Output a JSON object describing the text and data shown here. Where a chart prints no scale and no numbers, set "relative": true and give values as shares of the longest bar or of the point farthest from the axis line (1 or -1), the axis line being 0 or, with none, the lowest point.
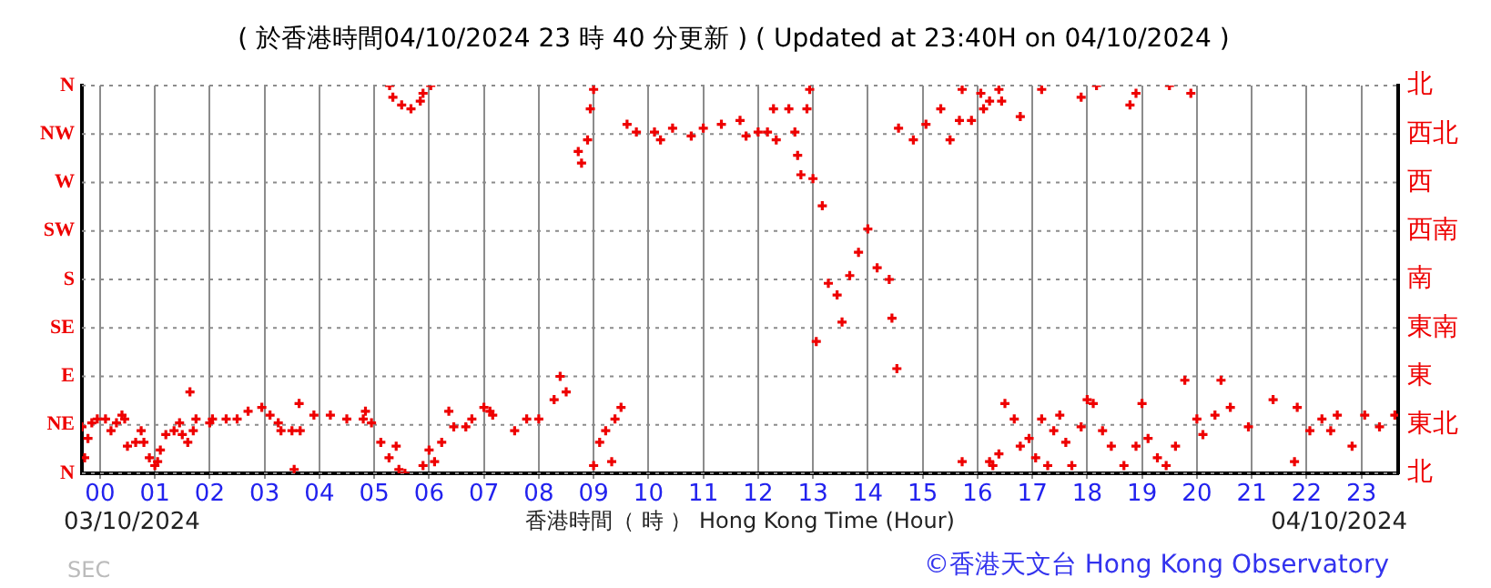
{
  "chart_data": {
    "type": "scatter",
    "title": "( 於香港時間04/10/2024 23 時 40 分更新 ) ( Updated at 23:40H on 04/10/2024 )",
    "xlabel": "香港時間（ 時 ） Hong Kong Time (Hour)",
    "annotations": [
      "03/10/2024",
      "04/10/2024",
      "©香港天文台 Hong Kong Observatory",
      "SEC",
      "N",
      "NE",
      "E",
      "SE",
      "S",
      "SW",
      "W",
      "NW",
      "N",
      "北",
      "東北",
      "東",
      "東南",
      "南",
      "西南",
      "西",
      "西北",
      "北"
    ],
    "color": "#ee0000",
    "marker": "cross",
    "grid": true,
    "relative": true,
    "x": [
      -0.33,
      -0.28,
      -0.22,
      -0.15,
      -0.05,
      0.1,
      0.2,
      0.3,
      0.4,
      0.45,
      0.5,
      0.65,
      0.75,
      0.8,
      0.9,
      1.0,
      1.05,
      1.1,
      1.2,
      1.35,
      1.45,
      1.5,
      1.6,
      1.64,
      1.7,
      1.75,
      2.0,
      2.05,
      2.3,
      2.5,
      2.7,
      2.95,
      3.1,
      3.25,
      3.3,
      3.5,
      3.54,
      3.63,
      3.65,
      3.9,
      4.2,
      4.5,
      4.8,
      4.84,
      4.95,
      5.12,
      5.27,
      5.28,
      5.34,
      5.4,
      5.45,
      5.5,
      5.56,
      5.67,
      5.84,
      5.89,
      5.89,
      6.0,
      6.03,
      6.1,
      6.23,
      6.36,
      6.45,
      6.67,
      6.78,
      7.0,
      7.11,
      7.16,
      7.56,
      7.78,
      8.0,
      8.28,
      8.39,
      8.5,
      8.72,
      8.78,
      8.89,
      8.94,
      9.0,
      9.0,
      9.11,
      9.22,
      9.33,
      9.39,
      9.5,
      9.61,
      9.78,
      10.11,
      10.22,
      10.44,
      10.78,
      11.0,
      11.33,
      11.67,
      11.78,
      12.0,
      12.17,
      12.28,
      12.33,
      12.56,
      12.67,
      12.72,
      12.78,
      12.89,
      12.94,
      13.0,
      13.06,
      13.17,
      13.28,
      13.44,
      13.53,
      13.67,
      13.83,
      14.0,
      14.17,
      14.39,
      14.44,
      14.53,
      14.56,
      14.83,
      15.06,
      15.33,
      15.5,
      15.67,
      15.72,
      15.72,
      15.89,
      16.06,
      16.11,
      16.22,
      16.22,
      16.28,
      16.39,
      16.39,
      16.44,
      16.5,
      16.67,
      16.78,
      16.78,
      16.94,
      17.06,
      17.17,
      17.17,
      17.28,
      17.39,
      17.5,
      17.61,
      17.72,
      17.89,
      17.89,
      18.0,
      18.11,
      18.17,
      18.28,
      18.44,
      18.67,
      18.78,
      18.89,
      18.89,
      19.0,
      19.11,
      19.28,
      19.44,
      19.5,
      19.61,
      19.78,
      19.89,
      20.0,
      20.11,
      20.33,
      20.44,
      20.61,
      20.94,
      21.39,
      21.78,
      21.83,
      22.06,
      22.28,
      22.44,
      22.56,
      22.83,
      23.06,
      23.33,
      23.61
    ],
    "values": [
      0.12,
      0.04,
      0.09,
      0.13,
      0.14,
      0.14,
      0.11,
      0.13,
      0.15,
      0.14,
      0.07,
      0.08,
      0.11,
      0.08,
      0.04,
      0.02,
      0.03,
      0.06,
      0.1,
      0.11,
      0.13,
      0.1,
      0.08,
      0.21,
      0.11,
      0.14,
      0.13,
      0.14,
      0.14,
      0.14,
      0.16,
      0.17,
      0.15,
      0.13,
      0.11,
      0.11,
      0.01,
      0.18,
      0.11,
      0.15,
      0.15,
      0.14,
      0.14,
      0.16,
      0.13,
      0.08,
      0.04,
      1,
      0.97,
      0.07,
      0.01,
      0.95,
      0,
      0.94,
      0.96,
      0.98,
      0.02,
      0.06,
      1,
      0.03,
      0.08,
      0.16,
      0.12,
      0.12,
      0.14,
      0.17,
      0.16,
      0.15,
      0.11,
      0.14,
      0.14,
      0.19,
      0.25,
      0.21,
      0.83,
      0.8,
      0.86,
      0.94,
      0.99,
      0.02,
      0.08,
      0.11,
      0.03,
      0.14,
      0.17,
      0.9,
      0.88,
      0.88,
      0.86,
      0.89,
      0.87,
      0.89,
      0.9,
      0.91,
      0.87,
      0.88,
      0.88,
      0.94,
      0.86,
      0.94,
      0.88,
      0.82,
      0.77,
      0.94,
      0.99,
      0.76,
      0.34,
      0.69,
      0.49,
      0.46,
      0.39,
      0.51,
      0.57,
      0.63,
      0.53,
      0.5,
      0.4,
      0.27,
      0.89,
      0.86,
      0.9,
      0.94,
      0.86,
      0.91,
      0.99,
      0.03,
      0.91,
      0.98,
      0.94,
      0.96,
      0.03,
      0.02,
      0.99,
      0.05,
      0.96,
      0.18,
      0.14,
      0.92,
      0.07,
      0.09,
      0.04,
      0.99,
      0.14,
      0.02,
      0.11,
      0.15,
      0.08,
      0.02,
      0.97,
      0.12,
      0.19,
      0.18,
      1,
      0.11,
      0.07,
      0.02,
      0.95,
      0.98,
      0.07,
      0.18,
      0.09,
      0.04,
      0.02,
      1,
      0.07,
      0.24,
      0.98,
      0.14,
      0.1,
      0.15,
      0.24,
      0.17,
      0.12,
      0.19,
      0.03,
      0.17,
      0.11,
      0.14,
      0.11,
      0.15,
      0.07,
      0.15,
      0.12,
      0.15
    ],
    "xlim": [
      -0.33,
      23.67
    ],
    "xticks": [
      {
        "value": 0,
        "label": "00"
      },
      {
        "value": 1,
        "label": "01"
      },
      {
        "value": 2,
        "label": "02"
      },
      {
        "value": 3,
        "label": "03"
      },
      {
        "value": 4,
        "label": "04"
      },
      {
        "value": 5,
        "label": "05"
      },
      {
        "value": 6,
        "label": "06"
      },
      {
        "value": 7,
        "label": "07"
      },
      {
        "value": 8,
        "label": "08"
      },
      {
        "value": 9,
        "label": "09"
      },
      10,
      11,
      12,
      13,
      14,
      15,
      16,
      17,
      18,
      19,
      20,
      21,
      22,
      23
    ]
  }
}
